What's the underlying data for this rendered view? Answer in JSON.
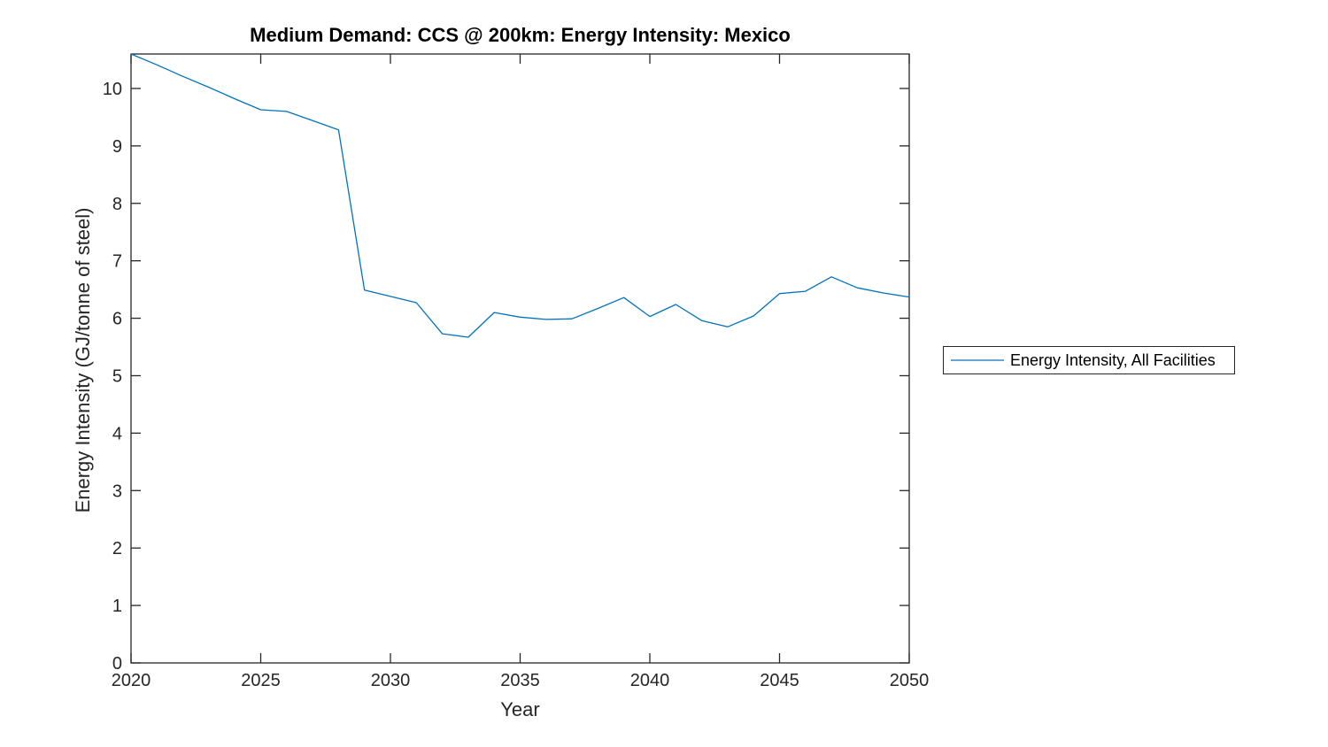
{
  "figure": {
    "background": "#ffffff"
  },
  "chart_data": {
    "type": "line",
    "title": "Medium Demand: CCS @ 200km: Energy Intensity: Mexico",
    "xlabel": "Year",
    "ylabel": "Energy Intensity (GJ/tonne of steel)",
    "xlim": [
      2020,
      2050
    ],
    "ylim": [
      0,
      10.6
    ],
    "xticks": [
      2020,
      2025,
      2030,
      2035,
      2040,
      2045,
      2050
    ],
    "yticks": [
      0,
      1,
      2,
      3,
      4,
      5,
      6,
      7,
      8,
      9,
      10
    ],
    "grid": false,
    "legend_position": "outside-right",
    "line_color": "#0072BD",
    "axis_color": "#262626",
    "series": [
      {
        "name": "Energy Intensity, All Facilities",
        "x": [
          2020,
          2021,
          2022,
          2023,
          2024,
          2025,
          2026,
          2027,
          2028,
          2029,
          2030,
          2031,
          2032,
          2033,
          2034,
          2035,
          2036,
          2037,
          2038,
          2039,
          2040,
          2041,
          2042,
          2043,
          2044,
          2045,
          2046,
          2047,
          2048,
          2049,
          2050
        ],
        "values": [
          10.6,
          10.41,
          10.21,
          10.02,
          9.82,
          9.63,
          9.6,
          9.44,
          9.28,
          6.49,
          6.38,
          6.27,
          5.73,
          5.67,
          6.1,
          6.02,
          5.98,
          5.99,
          6.17,
          6.36,
          6.03,
          6.24,
          5.96,
          5.85,
          6.04,
          6.43,
          6.47,
          6.72,
          6.53,
          6.44,
          6.37
        ]
      }
    ]
  }
}
